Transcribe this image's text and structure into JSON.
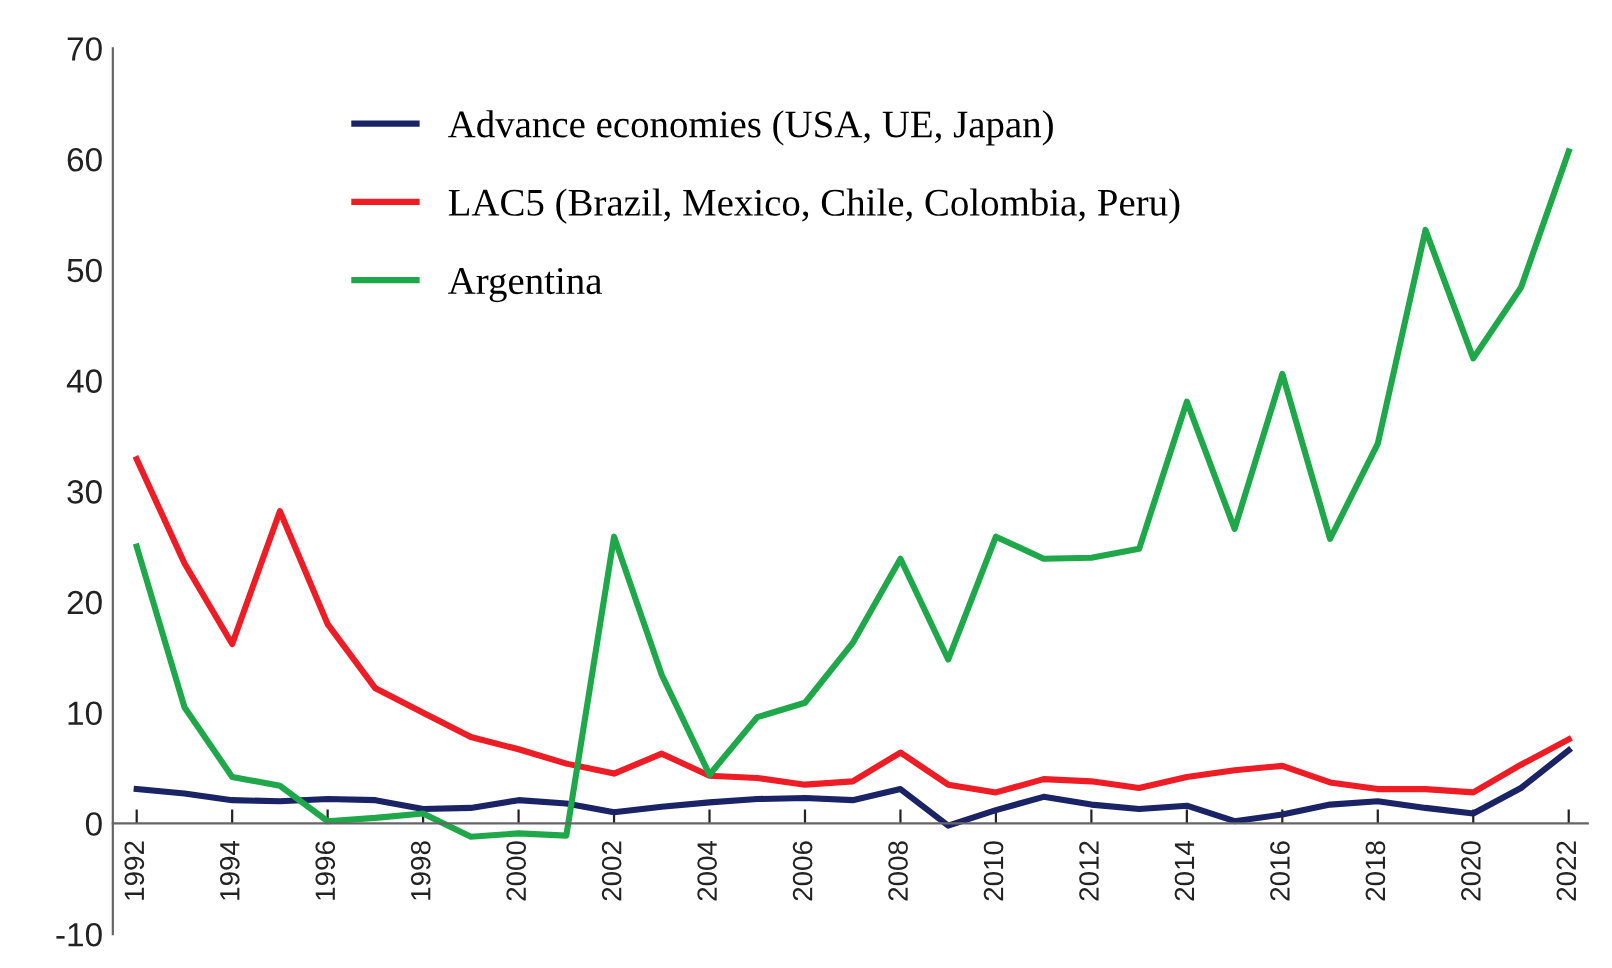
{
  "chart_data": {
    "type": "line",
    "x": [
      1992,
      1993,
      1994,
      1995,
      1996,
      1997,
      1998,
      1999,
      2000,
      2001,
      2002,
      2003,
      2004,
      2005,
      2006,
      2007,
      2008,
      2009,
      2010,
      2011,
      2012,
      2013,
      2014,
      2015,
      2016,
      2017,
      2018,
      2019,
      2020,
      2021,
      2022
    ],
    "series": [
      {
        "name": "Advance economies (USA, UE, Japan)",
        "color": "#1a2366",
        "values": [
          3.1,
          2.7,
          2.1,
          2.0,
          2.2,
          2.1,
          1.3,
          1.4,
          2.1,
          1.8,
          1.0,
          1.5,
          1.9,
          2.2,
          2.3,
          2.1,
          3.1,
          -0.2,
          1.2,
          2.4,
          1.7,
          1.3,
          1.6,
          0.2,
          0.8,
          1.7,
          2.0,
          1.4,
          0.9,
          3.2,
          6.6
        ]
      },
      {
        "name": "LAC5 (Brazil, Mexico, Chile, Colombia, Peru)",
        "color": "#ee1c25",
        "values": [
          32.9,
          23.5,
          16.2,
          28.2,
          18.0,
          12.2,
          10.0,
          7.8,
          6.7,
          5.4,
          4.5,
          6.3,
          4.3,
          4.1,
          3.5,
          3.8,
          6.4,
          3.5,
          2.8,
          4.0,
          3.8,
          3.2,
          4.2,
          4.8,
          5.2,
          3.7,
          3.1,
          3.1,
          2.8,
          5.3,
          7.6
        ]
      },
      {
        "name": "Argentina",
        "color": "#1fa84a",
        "values": [
          25.0,
          10.5,
          4.2,
          3.4,
          0.2,
          0.5,
          0.9,
          -1.2,
          -0.9,
          -1.1,
          25.9,
          13.4,
          4.4,
          9.6,
          10.9,
          16.3,
          23.9,
          14.8,
          25.9,
          23.9,
          24.0,
          24.8,
          38.1,
          26.6,
          40.6,
          25.7,
          34.3,
          53.6,
          42.0,
          48.4,
          60.7
        ]
      }
    ],
    "xlim": [
      1991.5,
      2022.4
    ],
    "xticks": [
      1992,
      1994,
      1996,
      1998,
      2000,
      2002,
      2004,
      2006,
      2008,
      2010,
      2012,
      2014,
      2016,
      2018,
      2020,
      2022
    ],
    "ylim": [
      -10,
      70
    ],
    "yticks": [
      -10,
      0,
      10,
      20,
      30,
      40,
      50,
      60,
      70
    ],
    "grid": false,
    "legend": "upper left",
    "line_style": "solid",
    "marker": "none"
  }
}
